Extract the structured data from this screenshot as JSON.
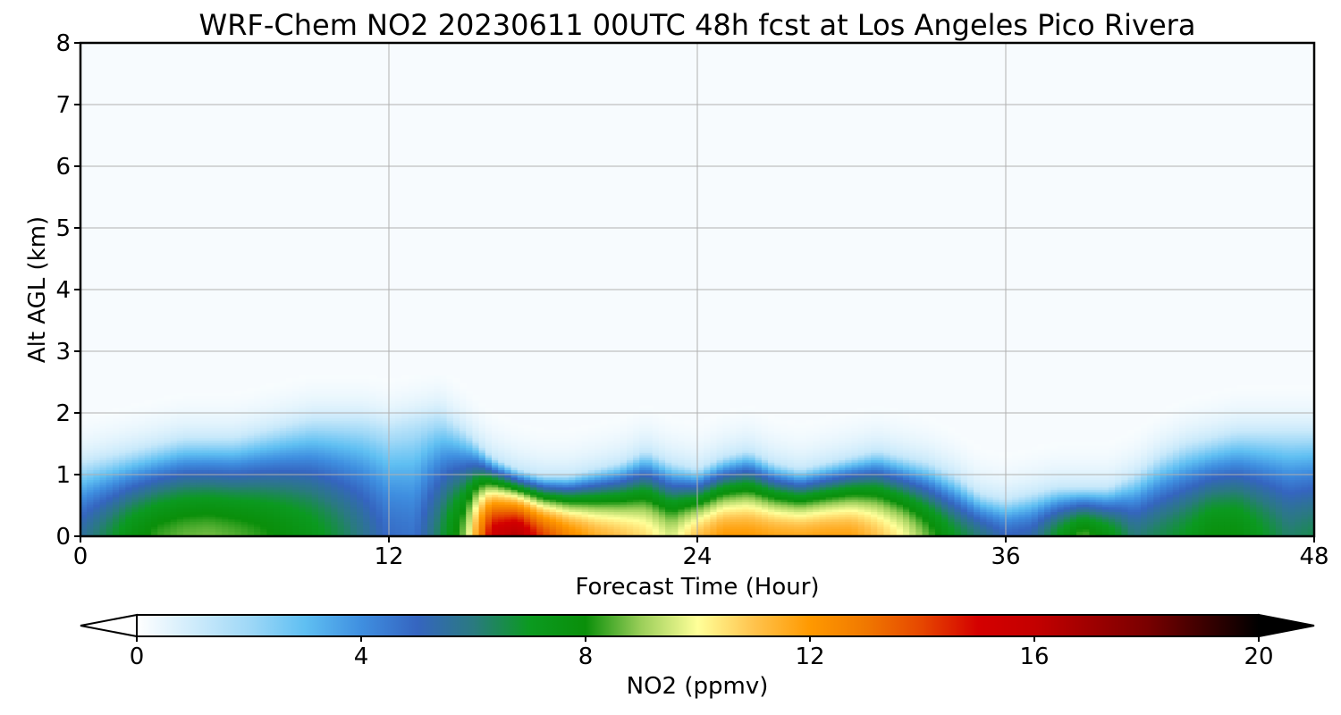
{
  "chart_data": {
    "type": "heatmap",
    "title": "WRF-Chem NO2  20230611 00UTC 48h fcst at Los Angeles Pico Rivera",
    "xlabel": "Forecast Time (Hour)",
    "ylabel": "Alt AGL (km)",
    "xlim": [
      0,
      48
    ],
    "ylim": [
      0,
      8
    ],
    "xticks": [
      0,
      12,
      24,
      36,
      48
    ],
    "yticks": [
      0,
      1,
      2,
      3,
      4,
      5,
      6,
      7,
      8
    ],
    "grid": true,
    "colorbar": {
      "label": "NO2  (ppmv)",
      "range": [
        0,
        20
      ],
      "ticks": [
        0,
        4,
        8,
        12,
        16,
        20
      ],
      "extend": "both",
      "stops": [
        [
          0,
          "#ffffff"
        ],
        [
          2,
          "#9fd8f7"
        ],
        [
          3,
          "#5fbff2"
        ],
        [
          4,
          "#3f8fe0"
        ],
        [
          5,
          "#3565c0"
        ],
        [
          6,
          "#2a7a80"
        ],
        [
          7,
          "#0b9a20"
        ],
        [
          8,
          "#0a8f0a"
        ],
        [
          9,
          "#9ccf5a"
        ],
        [
          10,
          "#ffff99"
        ],
        [
          11,
          "#ffc34d"
        ],
        [
          12,
          "#ff9900"
        ],
        [
          13,
          "#f07800"
        ],
        [
          14,
          "#e64600"
        ],
        [
          15,
          "#d40000"
        ],
        [
          16,
          "#c40000"
        ],
        [
          18,
          "#7a0000"
        ],
        [
          20,
          "#000000"
        ]
      ]
    },
    "profile_hours": [
      0,
      1,
      2,
      3,
      4,
      5,
      6,
      7,
      8,
      9,
      10,
      11,
      12,
      13,
      14,
      15,
      16,
      17,
      18,
      19,
      20,
      21,
      22,
      23,
      24,
      25,
      26,
      27,
      28,
      29,
      30,
      31,
      32,
      33,
      34,
      35,
      36,
      37,
      38,
      39,
      40,
      41,
      42,
      43,
      44,
      45,
      46,
      47,
      48
    ],
    "surface_no2": [
      5.5,
      6.5,
      7.6,
      8.3,
      8.6,
      8.7,
      8.5,
      8.2,
      7.8,
      7.3,
      6.6,
      5.8,
      4.8,
      4.6,
      6.5,
      9.0,
      15.5,
      16.5,
      14.0,
      12.5,
      11.5,
      11.0,
      10.5,
      9.5,
      11.0,
      12.0,
      12.0,
      11.7,
      11.6,
      11.8,
      11.8,
      11.0,
      10.0,
      8.5,
      7.0,
      6.0,
      5.0,
      5.3,
      7.0,
      8.5,
      7.5,
      6.0,
      6.5,
      7.0,
      7.8,
      7.8,
      7.0,
      6.2,
      6.5
    ],
    "mixing_height_km": [
      1.2,
      1.3,
      1.4,
      1.5,
      1.6,
      1.6,
      1.6,
      1.7,
      1.8,
      1.9,
      1.9,
      1.9,
      1.8,
      1.9,
      2.0,
      1.7,
      1.3,
      1.1,
      1.0,
      1.0,
      1.1,
      1.2,
      1.4,
      1.2,
      1.1,
      1.3,
      1.4,
      1.2,
      1.1,
      1.2,
      1.3,
      1.4,
      1.3,
      1.2,
      1.0,
      0.7,
      0.6,
      0.7,
      0.8,
      0.8,
      0.8,
      1.0,
      1.3,
      1.5,
      1.6,
      1.7,
      1.7,
      1.7,
      1.7
    ]
  }
}
